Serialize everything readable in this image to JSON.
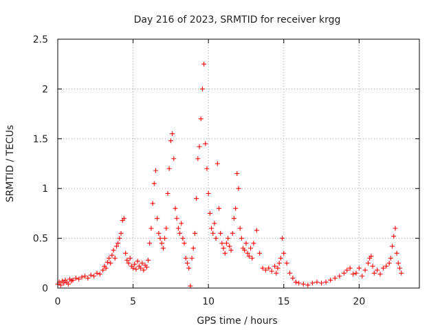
{
  "chart_data": {
    "type": "scatter",
    "title": "Day 216 of 2023, SRMTID for receiver krgg",
    "xlabel": "GPS time / hours",
    "ylabel": "SRMTID / TECUs",
    "xlim": [
      0,
      24
    ],
    "ylim": [
      0,
      2.5
    ],
    "xticks": [
      0,
      5,
      10,
      15,
      20
    ],
    "xtick_labels": [
      "0",
      "5",
      "10",
      "15",
      "20"
    ],
    "yticks": [
      0,
      0.5,
      1,
      1.5,
      2,
      2.5
    ],
    "ytick_labels": [
      "0",
      "0.5",
      "1",
      "1.5",
      "2",
      "2.5"
    ],
    "grid": true,
    "marker": "+",
    "series": [
      {
        "name": "SRMTID",
        "color": "#ff0000",
        "x": [
          0.0,
          0.1,
          0.2,
          0.3,
          0.4,
          0.5,
          0.6,
          0.7,
          0.8,
          0.9,
          1.0,
          1.2,
          1.4,
          1.6,
          1.8,
          2.0,
          2.2,
          2.4,
          2.6,
          2.8,
          3.0,
          3.1,
          3.2,
          3.3,
          3.4,
          3.5,
          3.6,
          3.7,
          3.8,
          3.9,
          4.0,
          4.1,
          4.2,
          4.3,
          4.4,
          4.5,
          4.6,
          4.7,
          4.8,
          4.9,
          5.0,
          5.1,
          5.2,
          5.3,
          5.4,
          5.5,
          5.6,
          5.7,
          5.8,
          5.9,
          6.0,
          6.1,
          6.2,
          6.3,
          6.4,
          6.5,
          6.6,
          6.7,
          6.8,
          6.9,
          7.0,
          7.1,
          7.2,
          7.3,
          7.4,
          7.5,
          7.6,
          7.7,
          7.8,
          7.9,
          8.0,
          8.1,
          8.2,
          8.3,
          8.4,
          8.5,
          8.6,
          8.7,
          8.8,
          8.9,
          9.0,
          9.1,
          9.2,
          9.3,
          9.4,
          9.5,
          9.6,
          9.7,
          9.8,
          9.9,
          10.0,
          10.1,
          10.2,
          10.3,
          10.4,
          10.5,
          10.6,
          10.7,
          10.8,
          10.9,
          11.0,
          11.1,
          11.2,
          11.3,
          11.4,
          11.5,
          11.6,
          11.7,
          11.8,
          11.9,
          12.0,
          12.1,
          12.2,
          12.3,
          12.4,
          12.5,
          12.6,
          12.7,
          12.8,
          12.9,
          13.0,
          13.2,
          13.4,
          13.6,
          13.8,
          14.0,
          14.2,
          14.4,
          14.5,
          14.6,
          14.7,
          14.8,
          14.9,
          15.0,
          15.2,
          15.4,
          15.6,
          15.8,
          16.0,
          16.3,
          16.6,
          16.9,
          17.2,
          17.5,
          17.8,
          18.1,
          18.4,
          18.7,
          19.0,
          19.2,
          19.4,
          19.6,
          19.8,
          20.0,
          20.2,
          20.4,
          20.6,
          20.7,
          20.8,
          20.9,
          21.0,
          21.2,
          21.4,
          21.6,
          21.8,
          22.0,
          22.1,
          22.2,
          22.3,
          22.4,
          22.5,
          22.6,
          22.7,
          22.8
        ],
        "y": [
          0.04,
          0.06,
          0.03,
          0.07,
          0.05,
          0.08,
          0.06,
          0.04,
          0.09,
          0.07,
          0.08,
          0.1,
          0.09,
          0.11,
          0.12,
          0.1,
          0.13,
          0.12,
          0.15,
          0.14,
          0.18,
          0.22,
          0.2,
          0.26,
          0.3,
          0.25,
          0.33,
          0.38,
          0.3,
          0.42,
          0.45,
          0.5,
          0.55,
          0.68,
          0.7,
          0.35,
          0.28,
          0.25,
          0.3,
          0.22,
          0.2,
          0.24,
          0.19,
          0.27,
          0.22,
          0.2,
          0.25,
          0.18,
          0.23,
          0.21,
          0.28,
          0.45,
          0.6,
          0.85,
          1.05,
          1.18,
          0.7,
          0.55,
          0.5,
          0.45,
          0.4,
          0.5,
          0.6,
          0.95,
          1.2,
          1.48,
          1.55,
          1.3,
          0.8,
          0.7,
          0.6,
          0.55,
          0.65,
          0.5,
          0.45,
          0.3,
          0.25,
          0.2,
          0.02,
          0.3,
          0.4,
          0.55,
          0.9,
          1.3,
          1.42,
          1.7,
          2.0,
          2.25,
          1.45,
          1.2,
          0.95,
          0.75,
          0.6,
          0.55,
          0.65,
          0.5,
          1.25,
          0.8,
          0.55,
          0.45,
          0.4,
          0.35,
          0.45,
          0.5,
          0.42,
          0.38,
          0.55,
          0.7,
          0.8,
          1.15,
          1.0,
          0.6,
          0.5,
          0.4,
          0.38,
          0.45,
          0.35,
          0.32,
          0.4,
          0.3,
          0.45,
          0.58,
          0.35,
          0.2,
          0.18,
          0.2,
          0.17,
          0.22,
          0.15,
          0.2,
          0.25,
          0.3,
          0.5,
          0.35,
          0.25,
          0.15,
          0.1,
          0.06,
          0.05,
          0.04,
          0.03,
          0.05,
          0.06,
          0.05,
          0.06,
          0.08,
          0.1,
          0.12,
          0.15,
          0.18,
          0.2,
          0.14,
          0.15,
          0.2,
          0.12,
          0.18,
          0.25,
          0.3,
          0.32,
          0.22,
          0.15,
          0.18,
          0.14,
          0.2,
          0.22,
          0.25,
          0.3,
          0.42,
          0.52,
          0.6,
          0.35,
          0.25,
          0.2,
          0.15
        ]
      }
    ]
  }
}
